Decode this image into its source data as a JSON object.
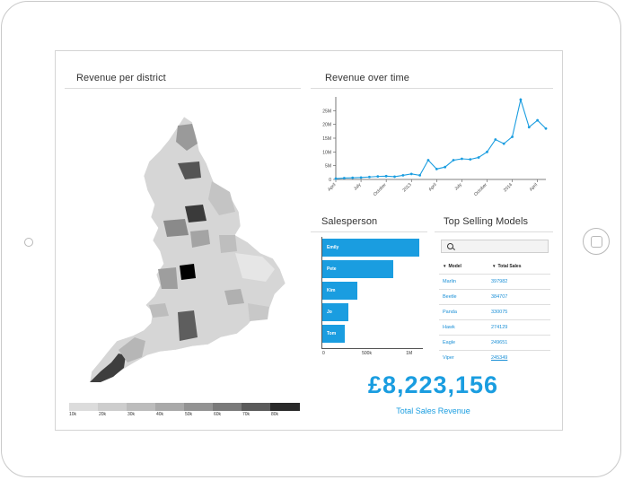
{
  "panels": {
    "map_title": "Revenue per district",
    "time_title": "Revenue over time",
    "sales_title": "Salesperson",
    "models_title": "Top Selling Models"
  },
  "legend": {
    "labels": [
      "10k",
      "20k",
      "30k",
      "40k",
      "50k",
      "60k",
      "70k",
      "80k"
    ],
    "colors": [
      "#dcdcdc",
      "#cdcdcd",
      "#bcbcbc",
      "#a9a9a9",
      "#939393",
      "#7a7a7a",
      "#5a5a5a",
      "#2a2a2a",
      "#000000"
    ]
  },
  "chart_data": [
    {
      "type": "line",
      "x": [
        "Apr 2012",
        "May 2012",
        "Jun 2012",
        "Jul 2012",
        "Aug 2012",
        "Sep 2012",
        "Oct 2012",
        "Nov 2012",
        "Dec 2012",
        "Jan 2013",
        "Feb 2013",
        "Mar 2013",
        "Apr 2013",
        "May 2013",
        "Jun 2013",
        "Jul 2013",
        "Aug 2013",
        "Sep 2013",
        "Oct 2013",
        "Nov 2013",
        "Dec 2013",
        "Jan 2014",
        "Feb 2014",
        "Mar 2014",
        "Apr 2014",
        "May 2014"
      ],
      "series": [
        {
          "values": [
            0.3,
            0.5,
            0.6,
            0.7,
            0.9,
            1.1,
            1.2,
            1.0,
            1.5,
            2.0,
            1.5,
            7.0,
            3.8,
            4.5,
            7.0,
            7.5,
            7.3,
            8.0,
            10.0,
            14.5,
            13.0,
            15.5,
            29.0,
            19.0,
            21.5,
            18.5
          ]
        }
      ],
      "xticks": [
        "April",
        "July",
        "October",
        "2013",
        "April",
        "July",
        "October",
        "2014",
        "April"
      ],
      "yticks": [
        "0",
        "5M",
        "10M",
        "15M",
        "20M",
        "25M"
      ],
      "ylim": [
        0,
        30
      ],
      "color": "#1a9de0"
    },
    {
      "type": "bar",
      "orientation": "horizontal",
      "categories": [
        "Emily",
        "Pete",
        "Kim",
        "Jo",
        "Tom"
      ],
      "values": [
        1100000,
        800000,
        400000,
        300000,
        250000
      ],
      "xticks": [
        "0",
        "500k",
        "1M"
      ],
      "xlim": [
        0,
        1150000
      ],
      "color": "#1a9de0"
    },
    {
      "type": "table",
      "columns": [
        "Model",
        "Total Sales"
      ],
      "rows": [
        [
          "Marlin",
          "397982"
        ],
        [
          "Beetle",
          "384707"
        ],
        [
          "Panda",
          "330075"
        ],
        [
          "Hawk",
          "274129"
        ],
        [
          "Eagle",
          "249651"
        ],
        [
          "Viper",
          "245349"
        ]
      ]
    }
  ],
  "total": {
    "value": "£8,223,156",
    "label": "Total Sales Revenue"
  }
}
